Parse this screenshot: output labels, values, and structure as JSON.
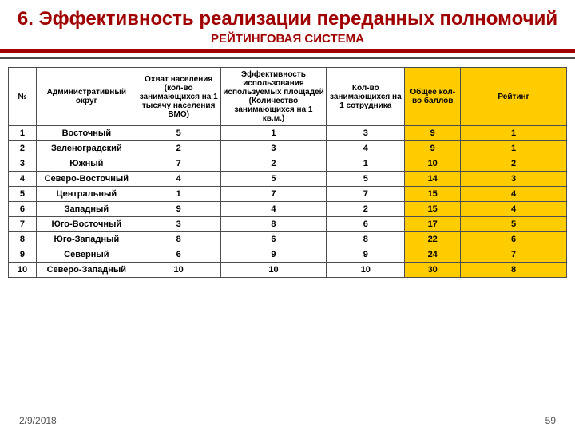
{
  "title": {
    "text": "6. Эффективность реализации переданных полномочий",
    "fontsize": 24
  },
  "subtitle": {
    "text": "РЕЙТИНГОВАЯ СИСТЕМА",
    "fontsize": 15
  },
  "colors": {
    "accent": "#a00000",
    "highlight": "#ffcc00",
    "border": "#4d4d4d",
    "background": "#ffffff",
    "footer_text": "#555555"
  },
  "table": {
    "header_fontsize": 10,
    "body_fontsize": 11,
    "col_widths_pct": [
      5,
      18,
      15,
      19,
      14,
      10,
      19
    ],
    "highlight_cols": [
      5,
      6
    ],
    "columns": [
      "№",
      "Административный округ",
      "Охват населения (кол-во занимающихся на 1 тысячу населения ВМО)",
      "Эффективность использования используемых площадей (Количество занимающихся на 1 кв.м.)",
      "Кол-во занимающихся на 1 сотрудника",
      "Общее кол-во баллов",
      "Рейтинг"
    ],
    "rows": [
      [
        "1",
        "Восточный",
        "5",
        "1",
        "3",
        "9",
        "1"
      ],
      [
        "2",
        "Зеленоградский",
        "2",
        "3",
        "4",
        "9",
        "1"
      ],
      [
        "3",
        "Южный",
        "7",
        "2",
        "1",
        "10",
        "2"
      ],
      [
        "4",
        "Северо-Восточный",
        "4",
        "5",
        "5",
        "14",
        "3"
      ],
      [
        "5",
        "Центральный",
        "1",
        "7",
        "7",
        "15",
        "4"
      ],
      [
        "6",
        "Западный",
        "9",
        "4",
        "2",
        "15",
        "4"
      ],
      [
        "7",
        "Юго-Восточный",
        "3",
        "8",
        "6",
        "17",
        "5"
      ],
      [
        "8",
        "Юго-Западный",
        "8",
        "6",
        "8",
        "22",
        "6"
      ],
      [
        "9",
        "Северный",
        "6",
        "9",
        "9",
        "24",
        "7"
      ],
      [
        "10",
        "Северо-Западный",
        "10",
        "10",
        "10",
        "30",
        "8"
      ]
    ]
  },
  "footer": {
    "date": "2/9/2018",
    "page": "59",
    "fontsize": 12
  }
}
